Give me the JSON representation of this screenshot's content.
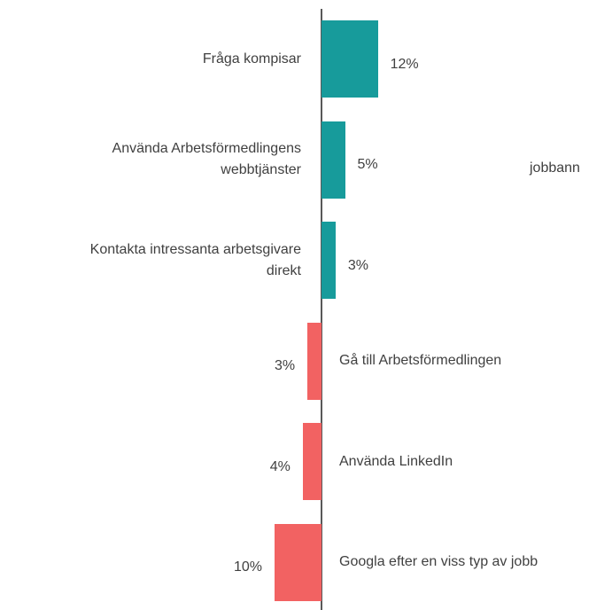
{
  "chart_data": {
    "type": "bar",
    "orientation": "horizontal",
    "categories": [
      "Fråga kompisar",
      "Använda Arbetsförmedlingens\nwebbtjänster",
      "Kontakta intressanta arbetsgivare\ndirekt",
      "Gå till Arbetsförmedlingen",
      "Använda LinkedIn",
      "Googla efter en viss typ av jobb"
    ],
    "values": [
      12,
      5,
      3,
      -3,
      -4,
      -10
    ],
    "value_labels": [
      "12%",
      "5%",
      "3%",
      "3%",
      "4%",
      "10%"
    ],
    "colors": [
      "#179b9b",
      "#179b9b",
      "#179b9b",
      "#f26262",
      "#f26262",
      "#f26262"
    ],
    "annotations": [
      "jobbann"
    ]
  }
}
